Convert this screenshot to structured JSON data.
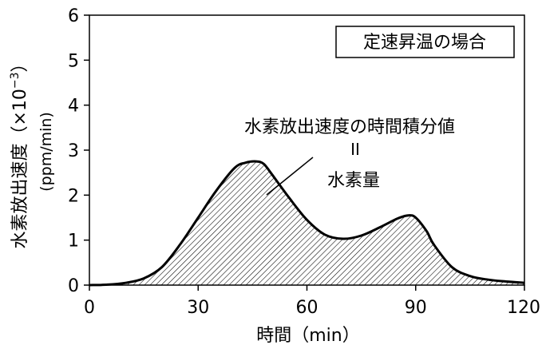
{
  "chart_data": {
    "type": "area",
    "title": "",
    "xlabel": "時間（min）",
    "ylabel_main": "水素放出速度（×10",
    "ylabel_exp": "−3",
    "ylabel_close": "）",
    "ylabel_unit": "(ppm/min)",
    "xlim": [
      0,
      120
    ],
    "ylim": [
      0,
      6
    ],
    "xticks": [
      0,
      30,
      60,
      90,
      120
    ],
    "yticks": [
      0,
      1,
      2,
      3,
      4,
      5,
      6
    ],
    "grid": false,
    "legend_box": "定速昇温の場合",
    "annotation": {
      "line1": "水素放出速度の時間積分値",
      "line2": "II",
      "line3": "水素量"
    },
    "series": [
      {
        "fill": "hatched",
        "x": [
          0,
          5,
          10,
          15,
          20,
          25,
          30,
          35,
          40,
          43,
          46,
          48,
          50,
          55,
          60,
          65,
          70,
          75,
          80,
          85,
          88,
          90,
          93,
          95,
          100,
          105,
          110,
          115,
          120
        ],
        "y": [
          0,
          0.01,
          0.05,
          0.15,
          0.4,
          0.9,
          1.5,
          2.1,
          2.6,
          2.72,
          2.75,
          2.7,
          2.5,
          1.95,
          1.45,
          1.12,
          1.03,
          1.1,
          1.28,
          1.48,
          1.55,
          1.5,
          1.2,
          0.9,
          0.4,
          0.2,
          0.12,
          0.08,
          0.05
        ]
      }
    ]
  }
}
